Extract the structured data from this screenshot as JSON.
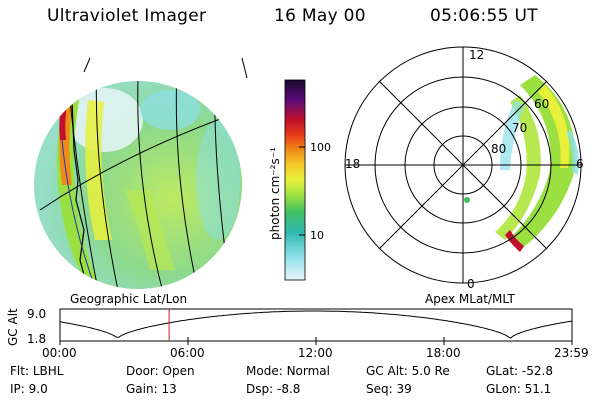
{
  "header": {
    "instrument": "Ultraviolet Imager",
    "date": "16 May 00",
    "time": "05:06:55 UT"
  },
  "colorbar": {
    "label": "photon cm⁻²s⁻¹",
    "ticks": [
      "100",
      "10"
    ],
    "colors": [
      "#1a0a2e",
      "#5a0a7a",
      "#c0102a",
      "#e8401a",
      "#f08a18",
      "#f4c828",
      "#e8f03c",
      "#9ae040",
      "#40c060",
      "#30b8b0",
      "#8ce0e8",
      "#e8f4f8"
    ]
  },
  "left_panel": {
    "label": "Geographic Lat/Lon"
  },
  "right_panel": {
    "label": "Apex MLat/MLT",
    "mlt_labels": {
      "top": "12",
      "bottom": "0",
      "left": "18",
      "right": "6"
    },
    "lat_labels": [
      "60",
      "70",
      "80"
    ]
  },
  "altitude_plot": {
    "ylabel": "GC Alt",
    "yticks": [
      "9.0",
      "1.8"
    ],
    "xticks": [
      "00:00",
      "06:00",
      "12:00",
      "18:00",
      "23:59"
    ],
    "current_time_hours": 5.115
  },
  "info": {
    "row1": [
      {
        "label": "Flt:",
        "value": "LBHL"
      },
      {
        "label": "Door:",
        "value": "Open"
      },
      {
        "label": "Mode:",
        "value": "Normal"
      },
      {
        "label": "GC Alt:",
        "value": "5.0 Re"
      },
      {
        "label": "GLat:",
        "value": "-52.8"
      }
    ],
    "row2": [
      {
        "label": "IP:",
        "value": "9.0"
      },
      {
        "label": "Gain:",
        "value": "13"
      },
      {
        "label": "Dsp:",
        "value": "-8.8"
      },
      {
        "label": "Seq:",
        "value": "39"
      },
      {
        "label": "GLon:",
        "value": "51.1"
      }
    ]
  }
}
